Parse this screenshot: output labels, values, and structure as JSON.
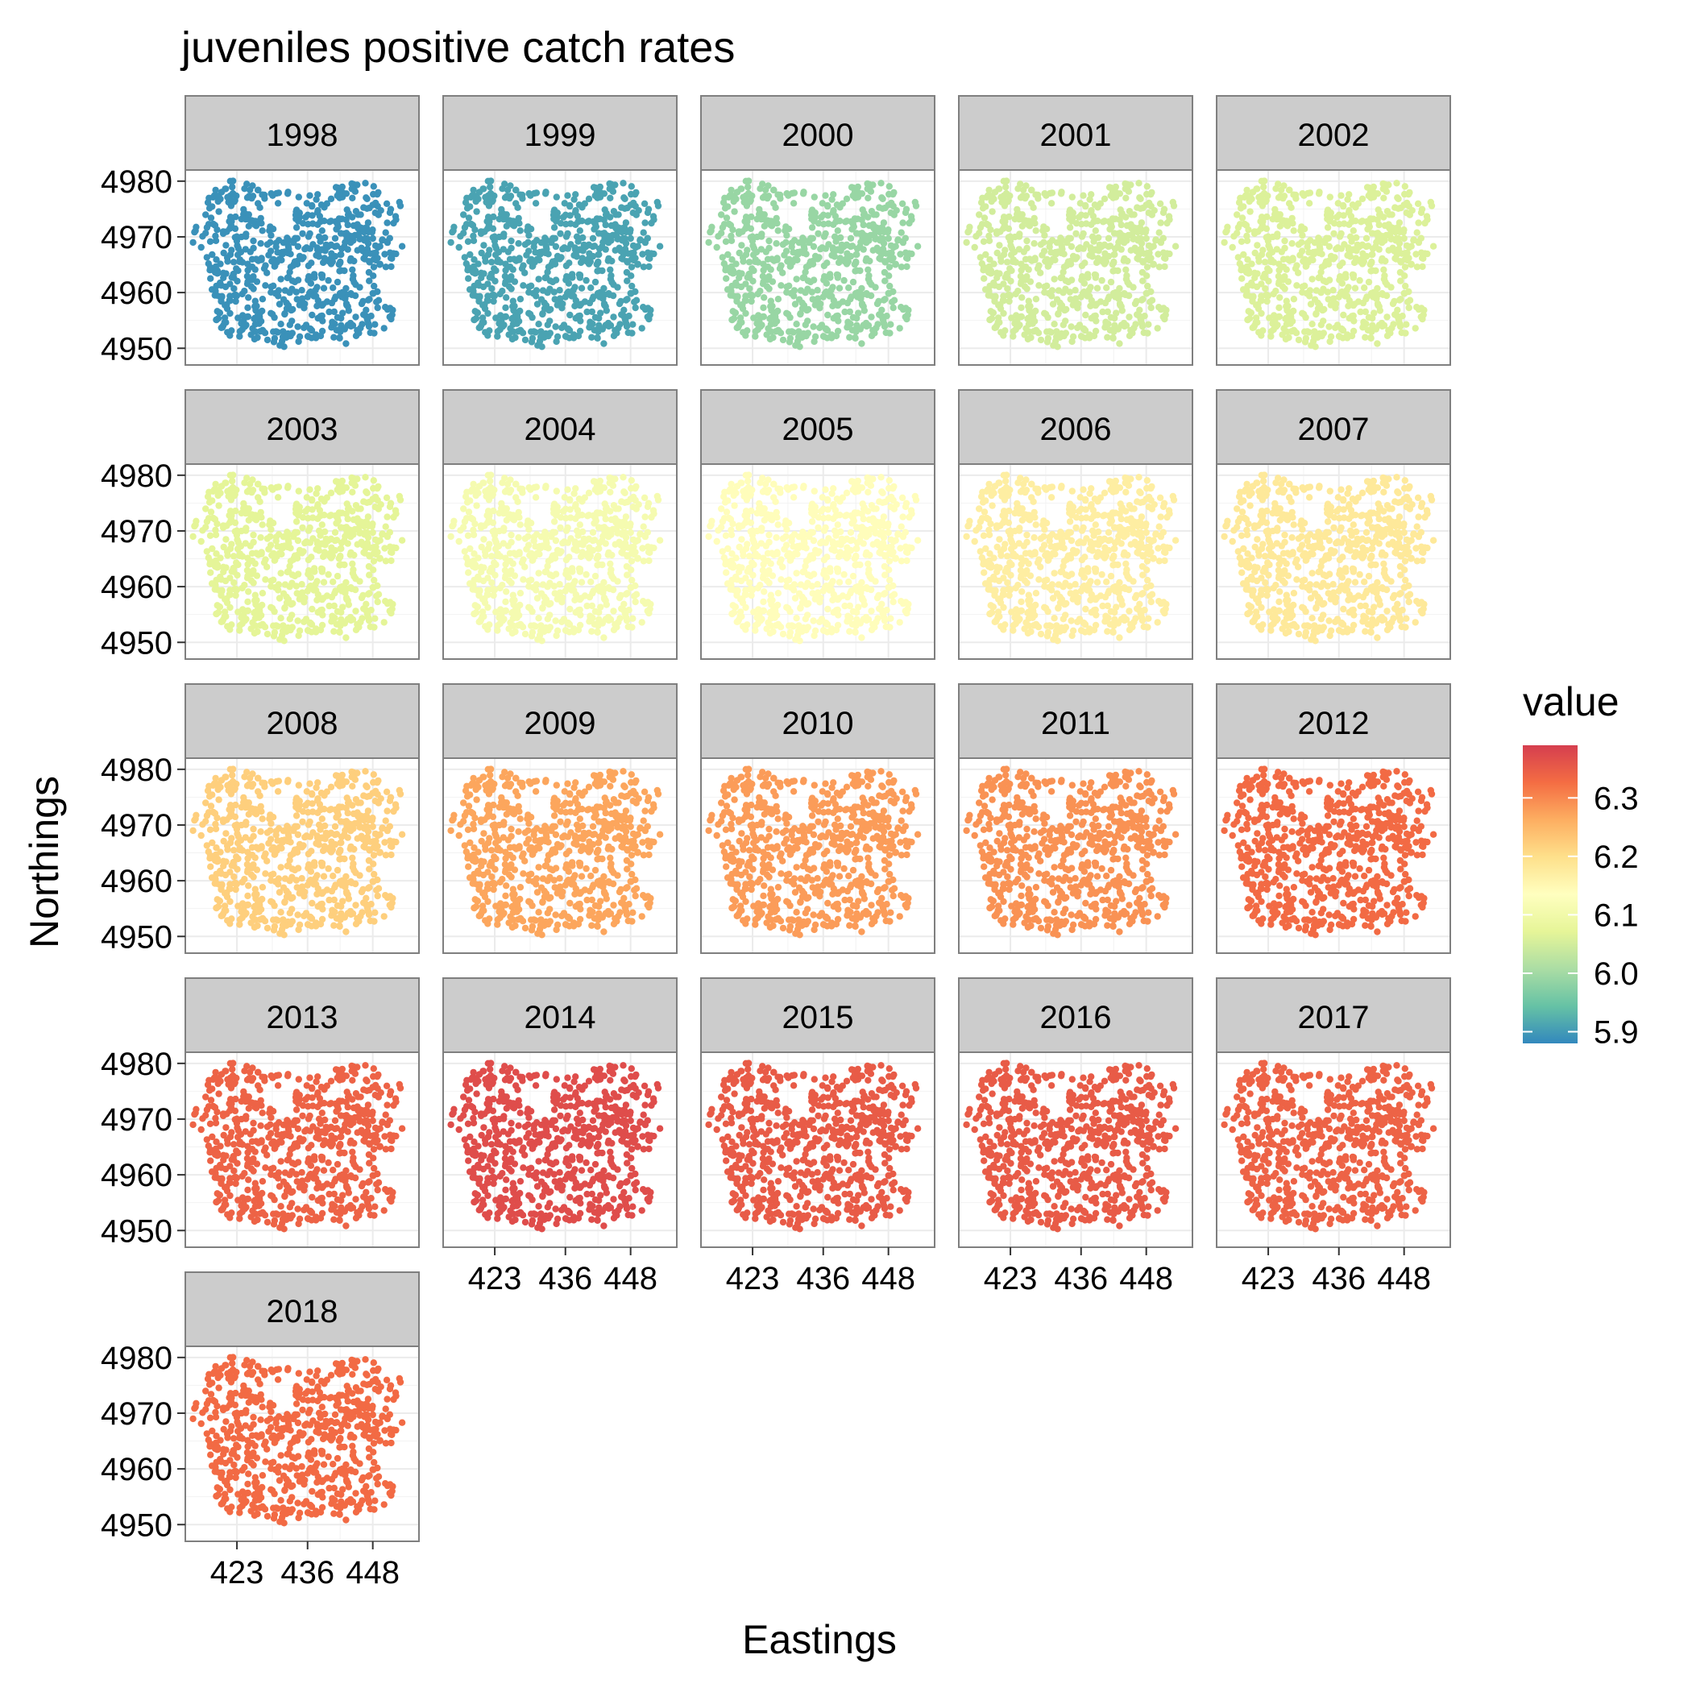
{
  "chart_data": {
    "type": "scatter",
    "title": "juveniles positive catch rates",
    "xlabel": "Eastings",
    "ylabel": "Northings",
    "facet_variable": "year",
    "panels": [
      "1998",
      "1999",
      "2000",
      "2001",
      "2002",
      "2003",
      "2004",
      "2005",
      "2006",
      "2007",
      "2008",
      "2009",
      "2010",
      "2011",
      "2012",
      "2013",
      "2014",
      "2015",
      "2016",
      "2017",
      "2018"
    ],
    "panel_values": [
      5.89,
      5.91,
      5.99,
      6.05,
      6.06,
      6.07,
      6.11,
      6.14,
      6.17,
      6.18,
      6.22,
      6.27,
      6.28,
      6.29,
      6.33,
      6.34,
      6.37,
      6.35,
      6.35,
      6.34,
      6.33
    ],
    "x_ticks": [
      423,
      436,
      448
    ],
    "y_ticks": [
      4950,
      4960,
      4970,
      4980
    ],
    "xlim": [
      413.5,
      456.5
    ],
    "ylim": [
      4947,
      4982
    ],
    "legend": {
      "title": "value",
      "position": "right",
      "ticks": [
        5.9,
        6.0,
        6.1,
        6.2,
        6.3
      ],
      "range": [
        5.88,
        6.39
      ],
      "colors": [
        "#3288BD",
        "#66C2A5",
        "#ABDDA4",
        "#E6F598",
        "#FFFFBF",
        "#FEE08B",
        "#FDAE61",
        "#F46D43",
        "#D53E4F"
      ]
    },
    "grid": true
  }
}
